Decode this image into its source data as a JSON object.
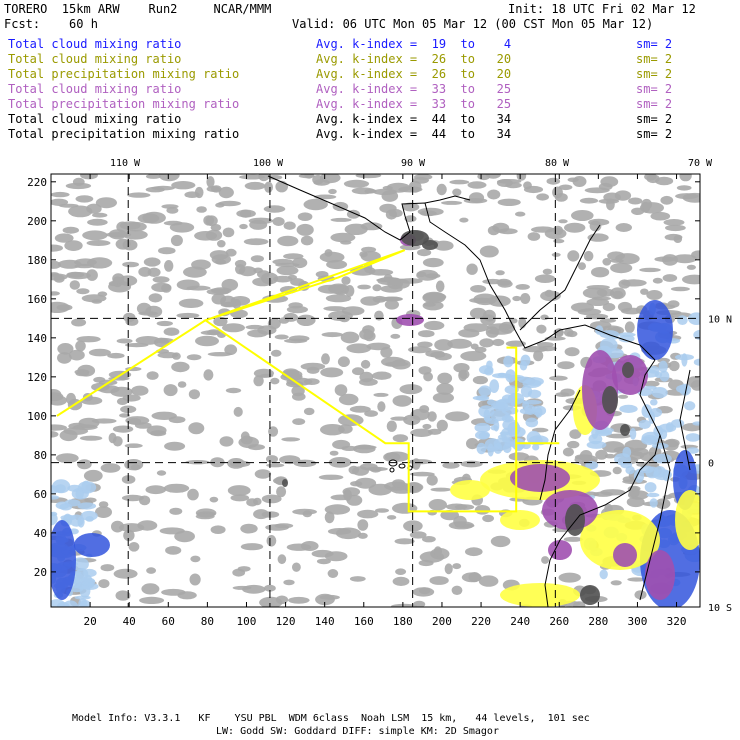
{
  "header": {
    "line1_left": "TORERO  15km ARW    Run2     NCAR/MMM",
    "line1_right": "Init: 18 UTC Fri 02 Mar 12",
    "line2_left": "Fcst:    60 h",
    "line2_right": "Valid: 06 UTC Mon 05 Mar 12 (00 CST Mon 05 Mar 12)"
  },
  "legend": [
    {
      "name": "Total cloud mixing ratio",
      "kindex": "Avg. k-index =  19  to    4",
      "sm": "sm= 2",
      "color": "#1a1aff"
    },
    {
      "name": "Total cloud mixing ratio",
      "kindex": "Avg. k-index =  26  to   20",
      "sm": "sm= 2",
      "color": "#9a9a00"
    },
    {
      "name": "Total precipitation mixing ratio",
      "kindex": "Avg. k-index =  26  to   20",
      "sm": "sm= 2",
      "color": "#9a9a00"
    },
    {
      "name": "Total cloud mixing ratio",
      "kindex": "Avg. k-index =  33  to   25",
      "sm": "sm= 2",
      "color": "#b060c0"
    },
    {
      "name": "Total precipitation mixing ratio",
      "kindex": "Avg. k-index =  33  to   25",
      "sm": "sm= 2",
      "color": "#b060c0"
    },
    {
      "name": "Total cloud mixing ratio",
      "kindex": "Avg. k-index =  44  to   34",
      "sm": "sm= 2",
      "color": "#000000"
    },
    {
      "name": "Total precipitation mixing ratio",
      "kindex": "Avg. k-index =  44  to   34",
      "sm": "sm= 2",
      "color": "#000000"
    }
  ],
  "chart_data": {
    "type": "map",
    "x_ticks": [
      "20",
      "40",
      "60",
      "80",
      "100",
      "120",
      "140",
      "160",
      "180",
      "200",
      "220",
      "240",
      "260",
      "280",
      "300",
      "320"
    ],
    "x_tick_values": [
      20,
      40,
      60,
      80,
      100,
      120,
      140,
      160,
      180,
      200,
      220,
      240,
      260,
      280,
      300,
      320
    ],
    "xlim": [
      0,
      332
    ],
    "y_ticks": [
      "20",
      "40",
      "60",
      "80",
      "100",
      "120",
      "140",
      "160",
      "180",
      "200",
      "220"
    ],
    "y_tick_values": [
      20,
      40,
      60,
      80,
      100,
      120,
      140,
      160,
      180,
      200,
      220
    ],
    "ylim": [
      2,
      224
    ],
    "lon_labels": [
      "110 W",
      "100 W",
      "90 W",
      "80 W",
      "70 W"
    ],
    "lon_label_x": [
      40,
      120,
      200,
      280,
      360
    ],
    "lat_labels": [
      "10 N",
      "0",
      "10 S"
    ],
    "lat_label_y": [
      150,
      76,
      2
    ],
    "meridian_grid_x": [
      39.5,
      112,
      185,
      258
    ],
    "parallel_grid_y": [
      150,
      76
    ],
    "colors": {
      "grey_cloud": "#a8a8a8",
      "dark_cloud": "#505050",
      "light_blue": "#aaccee",
      "blue": "#3355dd",
      "yellow": "#ffff44",
      "purple": "#a050b0",
      "track": "#ffff00",
      "coast": "#000000"
    },
    "flight_track": [
      [
        3,
        100
      ],
      [
        79,
        149
      ],
      [
        147,
        171
      ],
      [
        181,
        185
      ],
      [
        79,
        149
      ],
      [
        171,
        86
      ],
      [
        183,
        86
      ],
      [
        183,
        51
      ],
      [
        238,
        51
      ],
      [
        238,
        86
      ],
      [
        260,
        86
      ],
      [
        238,
        86
      ],
      [
        238,
        135
      ],
      [
        233,
        135
      ]
    ]
  },
  "footer": {
    "line1": "Model Info: V3.3.1   KF    YSU PBL  WDM 6class  Noah LSM  15 km,   44 levels,  101 sec",
    "line2": "LW: Godd SW: Goddard DIFF: simple KM: 2D Smagor"
  }
}
